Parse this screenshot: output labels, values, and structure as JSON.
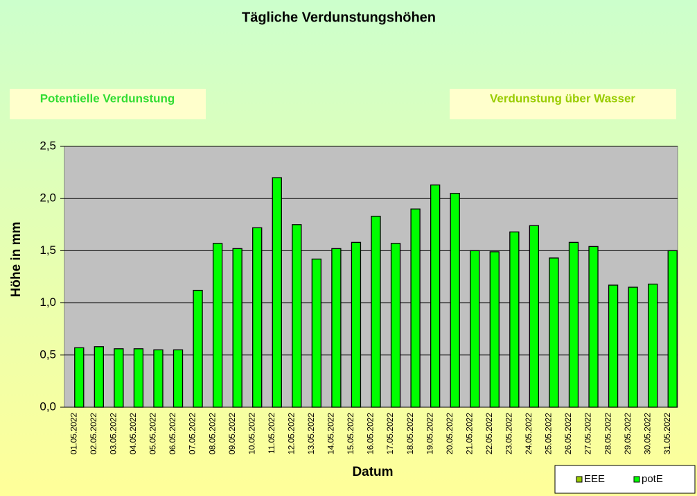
{
  "chart_data": {
    "type": "bar",
    "title": "Tägliche Verdunstungshöhen",
    "annotations": [
      "Potentielle Verdunstung",
      "Verdunstung über Wasser"
    ],
    "x_label": "Datum",
    "y_label": "Höhe in mm",
    "categories": [
      "01.05.2022",
      "02.05.2022",
      "03.05.2022",
      "04.05.2022",
      "05.05.2022",
      "06.05.2022",
      "07.05.2022",
      "08.05.2022",
      "09.05.2022",
      "10.05.2022",
      "11.05.2022",
      "12.05.2022",
      "13.05.2022",
      "14.05.2022",
      "15.05.2022",
      "16.05.2022",
      "17.05.2022",
      "18.05.2022",
      "19.05.2022",
      "20.05.2022",
      "21.05.2022",
      "22.05.2022",
      "23.05.2022",
      "24.05.2022",
      "25.05.2022",
      "26.05.2022",
      "27.05.2022",
      "28.05.2022",
      "29.05.2022",
      "30.05.2022",
      "31.05.2022"
    ],
    "series": [
      {
        "name": "EEE",
        "color": "#99cc00",
        "values": [
          null,
          null,
          null,
          null,
          null,
          null,
          null,
          null,
          null,
          null,
          null,
          null,
          null,
          null,
          null,
          null,
          null,
          null,
          null,
          null,
          null,
          null,
          null,
          null,
          null,
          null,
          null,
          null,
          null,
          null,
          null
        ]
      },
      {
        "name": "potE",
        "color": "#00ff00",
        "values": [
          0.57,
          0.58,
          0.56,
          0.56,
          0.55,
          0.55,
          1.12,
          1.57,
          1.52,
          1.72,
          2.2,
          1.75,
          1.42,
          1.52,
          1.58,
          1.83,
          1.57,
          1.9,
          2.13,
          2.05,
          1.5,
          1.49,
          1.68,
          1.74,
          1.43,
          1.58,
          1.54,
          1.17,
          1.15,
          1.18,
          1.5
        ]
      }
    ],
    "ylim": [
      0,
      2.5
    ],
    "yticks": [
      {
        "value": 0,
        "label": "0,0"
      },
      {
        "value": 0.5,
        "label": "0,5"
      },
      {
        "value": 1,
        "label": "1,0"
      },
      {
        "value": 1.5,
        "label": "1,5"
      },
      {
        "value": 2,
        "label": "2,0"
      },
      {
        "value": 2.5,
        "label": "2,5"
      }
    ],
    "grid": true,
    "legend": "bottom-right"
  }
}
